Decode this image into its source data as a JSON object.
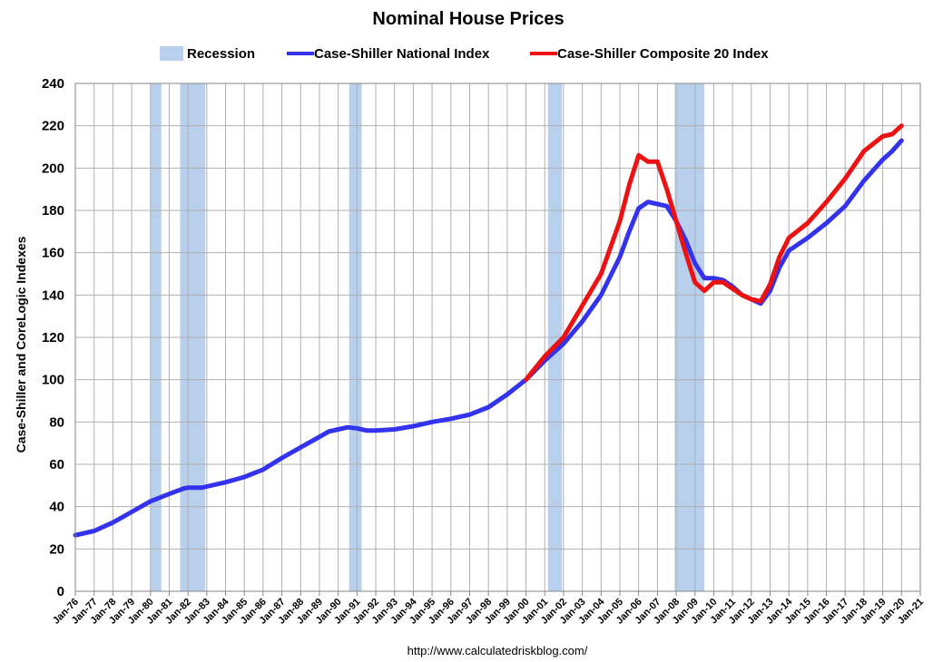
{
  "chart_data": {
    "type": "line",
    "title": "Nominal House Prices",
    "xlabel": "",
    "ylabel": "Case-Shiller and CoreLogic Indexes",
    "source": "http://www.calculatedriskblog.com/",
    "ylim": [
      0,
      240
    ],
    "yticks": [
      0,
      20,
      40,
      60,
      80,
      100,
      120,
      140,
      160,
      180,
      200,
      220,
      240
    ],
    "xlim": [
      1976,
      2021
    ],
    "xticks": [
      "Jan-76",
      "Jan-77",
      "Jan-78",
      "Jan-79",
      "Jan-80",
      "Jan-81",
      "Jan-82",
      "Jan-83",
      "Jan-84",
      "Jan-85",
      "Jan-86",
      "Jan-87",
      "Jan-88",
      "Jan-89",
      "Jan-90",
      "Jan-91",
      "Jan-92",
      "Jan-93",
      "Jan-94",
      "Jan-95",
      "Jan-96",
      "Jan-97",
      "Jan-98",
      "Jan-99",
      "Jan-00",
      "Jan-01",
      "Jan-02",
      "Jan-03",
      "Jan-04",
      "Jan-05",
      "Jan-06",
      "Jan-07",
      "Jan-08",
      "Jan-09",
      "Jan-10",
      "Jan-11",
      "Jan-12",
      "Jan-13",
      "Jan-14",
      "Jan-15",
      "Jan-16",
      "Jan-17",
      "Jan-18",
      "Jan-19",
      "Jan-20",
      "Jan-21"
    ],
    "grid": true,
    "legend": [
      {
        "name": "Recession",
        "color": "#b8d0ec",
        "kind": "area"
      },
      {
        "name": "Case-Shiller National Index",
        "color": "#3333ee",
        "kind": "line"
      },
      {
        "name": "Case-Shiller Composite 20 Index",
        "color": "#ee1111",
        "kind": "line"
      }
    ],
    "recessions": [
      [
        1980.0,
        1980.58
      ],
      [
        1981.58,
        1982.92
      ],
      [
        1990.58,
        1991.25
      ],
      [
        2001.17,
        2001.92
      ],
      [
        2007.92,
        2009.5
      ]
    ],
    "series": [
      {
        "name": "Case-Shiller National Index",
        "color": "#3333ee",
        "x": [
          1976,
          1977,
          1978,
          1979,
          1980,
          1981,
          1981.75,
          1982,
          1982.75,
          1983,
          1984,
          1985,
          1986,
          1987,
          1988,
          1989,
          1989.5,
          1990,
          1990.5,
          1991,
          1991.5,
          1992,
          1993,
          1994,
          1995,
          1996,
          1997,
          1998,
          1999,
          2000,
          2001,
          2002,
          2003,
          2004,
          2005,
          2005.5,
          2006,
          2006.5,
          2007,
          2007.5,
          2008,
          2008.5,
          2009,
          2009.5,
          2010,
          2010.5,
          2011,
          2011.5,
          2012,
          2012.5,
          2013,
          2013.5,
          2014,
          2015,
          2016,
          2017,
          2018,
          2019,
          2019.5,
          2020
        ],
        "y": [
          26.5,
          28.5,
          32.5,
          37.5,
          42.5,
          46,
          48.5,
          49,
          49,
          49.5,
          51.5,
          54,
          57.5,
          63,
          68,
          73,
          75.5,
          76.5,
          77.5,
          77,
          76,
          76,
          76.5,
          78,
          80,
          81.5,
          83.5,
          87,
          93,
          100,
          109,
          117,
          127.5,
          140,
          158,
          170,
          181,
          184,
          183,
          182,
          175,
          166,
          155,
          148,
          148,
          147,
          144,
          140,
          138,
          136,
          142,
          153,
          161,
          167,
          174,
          182,
          194,
          204,
          208,
          213
        ]
      },
      {
        "name": "Case-Shiller Composite 20 Index",
        "color": "#ee1111",
        "x": [
          2000,
          2001,
          2002,
          2003,
          2004,
          2005,
          2005.5,
          2006,
          2006.5,
          2007,
          2007.5,
          2008,
          2008.5,
          2009,
          2009.5,
          2010,
          2010.5,
          2011,
          2011.5,
          2012,
          2012.5,
          2013,
          2013.5,
          2014,
          2015,
          2016,
          2017,
          2018,
          2019,
          2019.5,
          2020
        ],
        "y": [
          100,
          111,
          120,
          135,
          150,
          175,
          192,
          206,
          203,
          203,
          190,
          175,
          160,
          146,
          142,
          146,
          146,
          143,
          140,
          138,
          137,
          145,
          158,
          167,
          174,
          184,
          195,
          208,
          215,
          216,
          220
        ]
      }
    ]
  }
}
